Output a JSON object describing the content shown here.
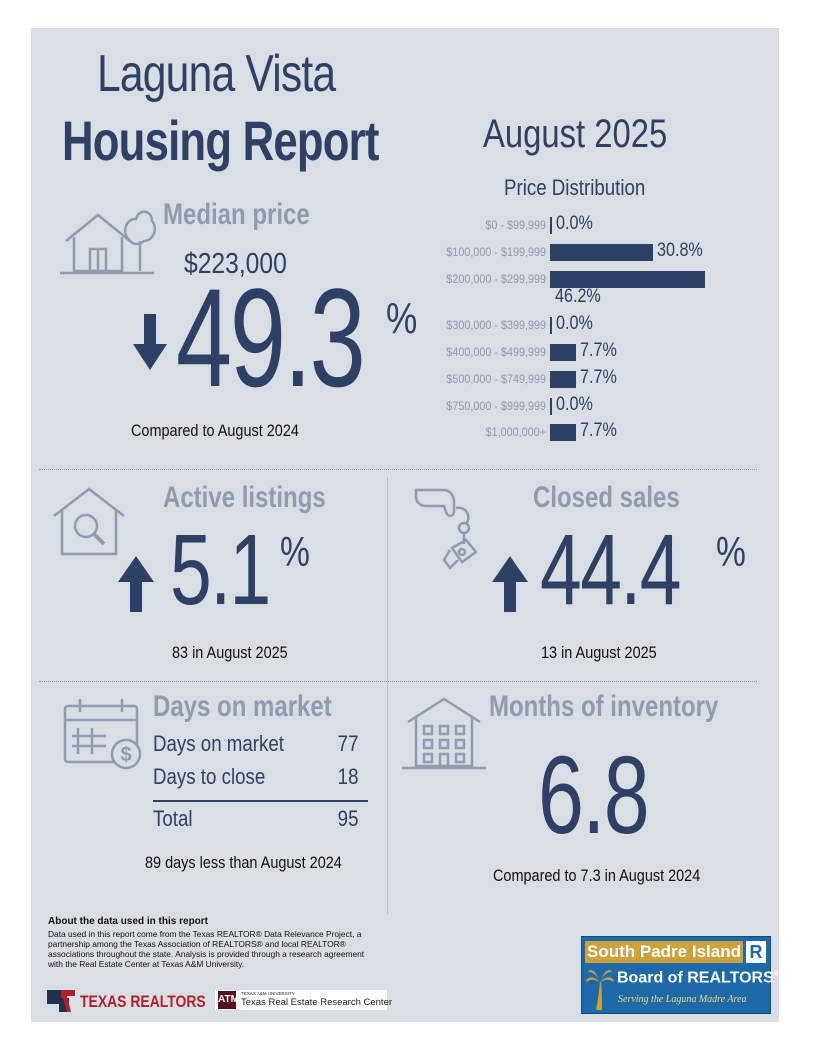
{
  "header": {
    "title_line1": "Laguna Vista",
    "title_line2": "Housing Report",
    "period": "August 2025"
  },
  "median": {
    "label": "Median price",
    "price": "$223,000",
    "change": "49.3",
    "change_unit": "%",
    "direction": "down",
    "comparison": "Compared to August 2024"
  },
  "price_distribution": {
    "title": "Price Distribution",
    "rows": [
      {
        "range": "$0 - $99,999",
        "pct": "0.0%",
        "value": 0.0
      },
      {
        "range": "$100,000 - $199,999",
        "pct": "30.8%",
        "value": 30.8
      },
      {
        "range": "$200,000 - $299,999",
        "pct": "46.2%",
        "value": 46.2
      },
      {
        "range": "$300,000 - $399,999",
        "pct": "0.0%",
        "value": 0.0
      },
      {
        "range": "$400,000 - $499,999",
        "pct": "7.7%",
        "value": 7.7
      },
      {
        "range": "$500,000 - $749,999",
        "pct": "7.7%",
        "value": 7.7
      },
      {
        "range": "$750,000 - $999,999",
        "pct": "0.0%",
        "value": 0.0
      },
      {
        "range": "$1,000,000+",
        "pct": "7.7%",
        "value": 7.7
      }
    ]
  },
  "active_listings": {
    "label": "Active listings",
    "change": "5.1",
    "change_unit": "%",
    "direction": "up",
    "note": "83 in August 2025"
  },
  "closed_sales": {
    "label": "Closed sales",
    "change": "44.4",
    "change_unit": "%",
    "direction": "up",
    "note": "13 in August 2025"
  },
  "days_on_market": {
    "label": "Days on market",
    "rows": [
      {
        "label": "Days on market",
        "value": "77"
      },
      {
        "label": "Days to close",
        "value": "18"
      }
    ],
    "total_label": "Total",
    "total_value": "95",
    "note": "89 days less than August 2024"
  },
  "months_inventory": {
    "label": "Months of inventory",
    "value": "6.8",
    "note": "Compared to 7.3 in August 2024"
  },
  "about": {
    "heading": "About the data used in this report",
    "text": "Data used in this report come from the Texas REALTOR® Data Relevance Project, a partnership among the Texas Association of REALTORS® and local REALTOR® associations throughout the state. Analysis is provided through a research agreement with the Real Estate Center at Texas A&M University."
  },
  "footer": {
    "texas_realtors": "TEXAS REALTORS",
    "tamu_small": "TEXAS A&M UNIVERSITY",
    "tamu_name": "Texas Real Estate Research Center",
    "board_line1": "South Padre Island",
    "board_r": "R",
    "board_line2": "Board of REALTORS",
    "board_tagline": "Serving the Laguna Madre Area"
  },
  "colors": {
    "navy": "#2f4066",
    "grey": "#8f9bb0",
    "background": "#d9dde4"
  }
}
